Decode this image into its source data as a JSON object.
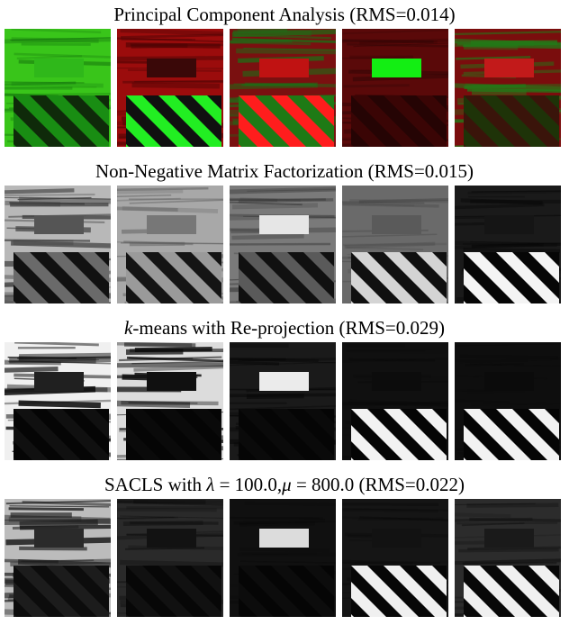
{
  "figure": {
    "panels": [
      {
        "title_parts": [
          {
            "text": "Principal Component Analysis (RMS=0.014)",
            "italic": false
          }
        ],
        "scheme": "pca",
        "tiles": [
          {
            "name": "pca-component-1",
            "bg": "#39c51a",
            "bgdark": "#0e6a0b",
            "rect": "#2fb81a",
            "stripeA": "#198d13",
            "stripeB": "#0f2a0a",
            "wood": 0.55
          },
          {
            "name": "pca-component-2",
            "bg": "#9b0c0c",
            "bgdark": "#4a0404",
            "rect": "#3a0808",
            "stripeA": "#22ee22",
            "stripeB": "#101010",
            "wood": 0.7
          },
          {
            "name": "pca-component-3",
            "bg": "#7a1010",
            "bgdark": "#1d6d16",
            "rect": "#c01212",
            "stripeA": "#ff1d1d",
            "stripeB": "#1e7a15",
            "wood": 0.9
          },
          {
            "name": "pca-component-4",
            "bg": "#5a0909",
            "bgdark": "#300505",
            "rect": "#13ee13",
            "stripeA": "#3a0505",
            "stripeB": "#250404",
            "wood": 0.6
          },
          {
            "name": "pca-component-5",
            "bg": "#7a0d0d",
            "bgdark": "#227a18",
            "rect": "#c21a1a",
            "stripeA": "#3a140a",
            "stripeB": "#1e3308",
            "wood": 0.95
          }
        ]
      },
      {
        "title_parts": [
          {
            "text": "Non-Negative Matrix Factorization (RMS=0.015)",
            "italic": false
          }
        ],
        "scheme": "nmf",
        "tiles": [
          {
            "name": "nmf-component-1",
            "bg": "#b8b8b8",
            "bgdark": "#3a3a3a",
            "rect": "#555555",
            "stripeA": "#6a6a6a",
            "stripeB": "#111111",
            "wood": 0.85
          },
          {
            "name": "nmf-component-2",
            "bg": "#a8a8a8",
            "bgdark": "#5a5a5a",
            "rect": "#777777",
            "stripeA": "#9a9a9a",
            "stripeB": "#141414",
            "wood": 0.6
          },
          {
            "name": "nmf-component-3",
            "bg": "#7a7a7a",
            "bgdark": "#3a3a3a",
            "rect": "#e6e6e6",
            "stripeA": "#5a5a5a",
            "stripeB": "#101010",
            "wood": 0.7
          },
          {
            "name": "nmf-component-4",
            "bg": "#6a6a6a",
            "bgdark": "#3c3c3c",
            "rect": "#5a5a5a",
            "stripeA": "#d4d4d4",
            "stripeB": "#101010",
            "wood": 0.45
          },
          {
            "name": "nmf-component-5",
            "bg": "#1a1a1a",
            "bgdark": "#050505",
            "rect": "#151515",
            "stripeA": "#f4f4f4",
            "stripeB": "#060606",
            "wood": 0.55
          }
        ]
      },
      {
        "title_parts": [
          {
            "text": "k",
            "italic": true
          },
          {
            "text": "-means with Re-projection (RMS=0.029)",
            "italic": false
          }
        ],
        "scheme": "kmeans",
        "tiles": [
          {
            "name": "kmeans-component-1",
            "bg": "#f0f0f0",
            "bgdark": "#0c0c0c",
            "rect": "#202020",
            "stripeA": "#101010",
            "stripeB": "#050505",
            "wood": 1.0
          },
          {
            "name": "kmeans-component-2",
            "bg": "#dcdcdc",
            "bgdark": "#0a0a0a",
            "rect": "#101010",
            "stripeA": "#0a0a0a",
            "stripeB": "#050505",
            "wood": 0.95
          },
          {
            "name": "kmeans-component-3",
            "bg": "#1a1a1a",
            "bgdark": "#050505",
            "rect": "#ebebeb",
            "stripeA": "#0a0a0a",
            "stripeB": "#050505",
            "wood": 0.6
          },
          {
            "name": "kmeans-component-4",
            "bg": "#101010",
            "bgdark": "#050505",
            "rect": "#0c0c0c",
            "stripeA": "#f2f2f2",
            "stripeB": "#050505",
            "wood": 0.25
          },
          {
            "name": "kmeans-component-5",
            "bg": "#0e0e0e",
            "bgdark": "#050505",
            "rect": "#0b0b0b",
            "stripeA": "#f2f2f2",
            "stripeB": "#050505",
            "wood": 0.2
          }
        ]
      },
      {
        "title_parts": [
          {
            "text": "SACLS with ",
            "italic": false
          },
          {
            "text": "λ",
            "italic": true
          },
          {
            "text": " = 100.0,",
            "italic": false
          },
          {
            "text": "μ",
            "italic": true
          },
          {
            "text": " = 800.0 (RMS=0.022)",
            "italic": false
          }
        ],
        "scheme": "sacls",
        "tiles": [
          {
            "name": "sacls-component-1",
            "bg": "#bcbcbc",
            "bgdark": "#1a1a1a",
            "rect": "#2a2a2a",
            "stripeA": "#1c1c1c",
            "stripeB": "#0c0c0c",
            "wood": 0.95
          },
          {
            "name": "sacls-component-2",
            "bg": "#2a2a2a",
            "bgdark": "#0a0a0a",
            "rect": "#121212",
            "stripeA": "#111111",
            "stripeB": "#070707",
            "wood": 0.55
          },
          {
            "name": "sacls-component-3",
            "bg": "#101010",
            "bgdark": "#050505",
            "rect": "#dcdcdc",
            "stripeA": "#0c0c0c",
            "stripeB": "#050505",
            "wood": 0.3
          },
          {
            "name": "sacls-component-4",
            "bg": "#151515",
            "bgdark": "#050505",
            "rect": "#121212",
            "stripeA": "#f0f0f0",
            "stripeB": "#070707",
            "wood": 0.3
          },
          {
            "name": "sacls-component-5",
            "bg": "#2c2c2c",
            "bgdark": "#0a0a0a",
            "rect": "#1a1a1a",
            "stripeA": "#f0f0f0",
            "stripeB": "#080808",
            "wood": 0.45
          }
        ]
      }
    ]
  }
}
